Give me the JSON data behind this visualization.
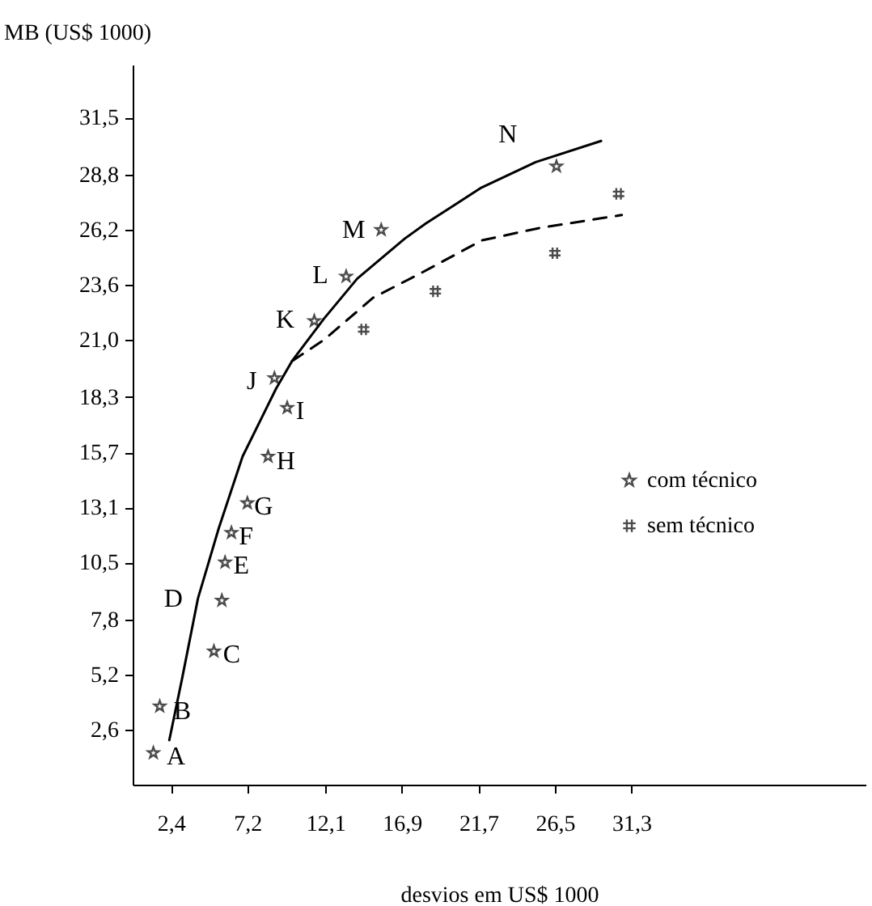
{
  "chart_data": {
    "type": "line",
    "xlabel": "desvios em US$ 1000",
    "ylabel": "MB (US$ 1000)",
    "xlim": [
      0,
      46
    ],
    "ylim": [
      0,
      34
    ],
    "xticks": [
      {
        "value": 2.4,
        "label": "2,4"
      },
      {
        "value": 7.2,
        "label": "7,2"
      },
      {
        "value": 12.1,
        "label": "12,1"
      },
      {
        "value": 16.9,
        "label": "16,9"
      },
      {
        "value": 21.7,
        "label": "21,7"
      },
      {
        "value": 26.5,
        "label": "26,5"
      },
      {
        "value": 31.3,
        "label": "31,3"
      }
    ],
    "yticks": [
      {
        "value": 2.6,
        "label": "2,6"
      },
      {
        "value": 5.2,
        "label": "5,2"
      },
      {
        "value": 7.8,
        "label": "7,8"
      },
      {
        "value": 10.5,
        "label": "10,5"
      },
      {
        "value": 13.1,
        "label": "13,1"
      },
      {
        "value": 15.7,
        "label": "15,7"
      },
      {
        "value": 18.3,
        "label": "18,3"
      },
      {
        "value": 21.0,
        "label": "21,0"
      },
      {
        "value": 23.6,
        "label": "23,6"
      },
      {
        "value": 26.2,
        "label": "26,2"
      },
      {
        "value": 28.8,
        "label": "28,8"
      },
      {
        "value": 31.5,
        "label": "31,5"
      }
    ],
    "grid": false,
    "legend": "right",
    "series": [
      {
        "type": "line",
        "line_style": "solid",
        "color": "#000000",
        "x": [
          2.3,
          3.1,
          4.1,
          5.4,
          6.9,
          9.0,
          10.0,
          12.0,
          14.1,
          17.1,
          18.4,
          21.9,
          25.3,
          29.4
        ],
        "values": [
          2.1,
          5.0,
          8.8,
          12.1,
          15.5,
          18.7,
          20.0,
          22.0,
          23.9,
          25.8,
          26.5,
          28.2,
          29.4,
          30.4
        ]
      },
      {
        "type": "line",
        "line_style": "dashed",
        "color": "#000000",
        "x": [
          10.0,
          12.0,
          15.1,
          18.2,
          21.9,
          25.6,
          30.7
        ],
        "values": [
          20.0,
          21.0,
          23.0,
          24.2,
          25.7,
          26.3,
          26.9
        ]
      },
      {
        "type": "scatter",
        "name": "com técnico",
        "marker": "star",
        "color": "#000000",
        "x": [
          1.3,
          1.7,
          5.1,
          5.6,
          5.8,
          6.2,
          7.2,
          8.5,
          9.7,
          8.9,
          11.4,
          13.4,
          15.6,
          26.6
        ],
        "values": [
          1.5,
          3.7,
          6.3,
          8.7,
          10.5,
          11.9,
          13.3,
          15.5,
          17.8,
          19.2,
          21.9,
          24.0,
          26.2,
          29.2
        ]
      },
      {
        "type": "scatter",
        "name": "sem técnico",
        "marker": "cross",
        "color": "#000000",
        "x": [
          14.5,
          19.0,
          26.5,
          30.5
        ],
        "values": [
          21.5,
          23.3,
          25.1,
          27.9
        ]
      }
    ],
    "annotations": [
      {
        "text": "A",
        "x": 1.3,
        "y": 1.5
      },
      {
        "text": "B",
        "x": 1.7,
        "y": 3.7
      },
      {
        "text": "C",
        "x": 5.1,
        "y": 6.3
      },
      {
        "text": "D",
        "x": 5.6,
        "y": 8.7
      },
      {
        "text": "E",
        "x": 5.8,
        "y": 10.5
      },
      {
        "text": "F",
        "x": 6.2,
        "y": 11.9
      },
      {
        "text": "G",
        "x": 7.2,
        "y": 13.3
      },
      {
        "text": "H",
        "x": 8.5,
        "y": 15.5
      },
      {
        "text": "I",
        "x": 9.7,
        "y": 17.8
      },
      {
        "text": "J",
        "x": 8.9,
        "y": 19.2
      },
      {
        "text": "K",
        "x": 11.4,
        "y": 21.9
      },
      {
        "text": "L",
        "x": 13.4,
        "y": 24.0
      },
      {
        "text": "M",
        "x": 15.6,
        "y": 26.2
      },
      {
        "text": "N",
        "x": 26.6,
        "y": 29.2
      }
    ]
  }
}
